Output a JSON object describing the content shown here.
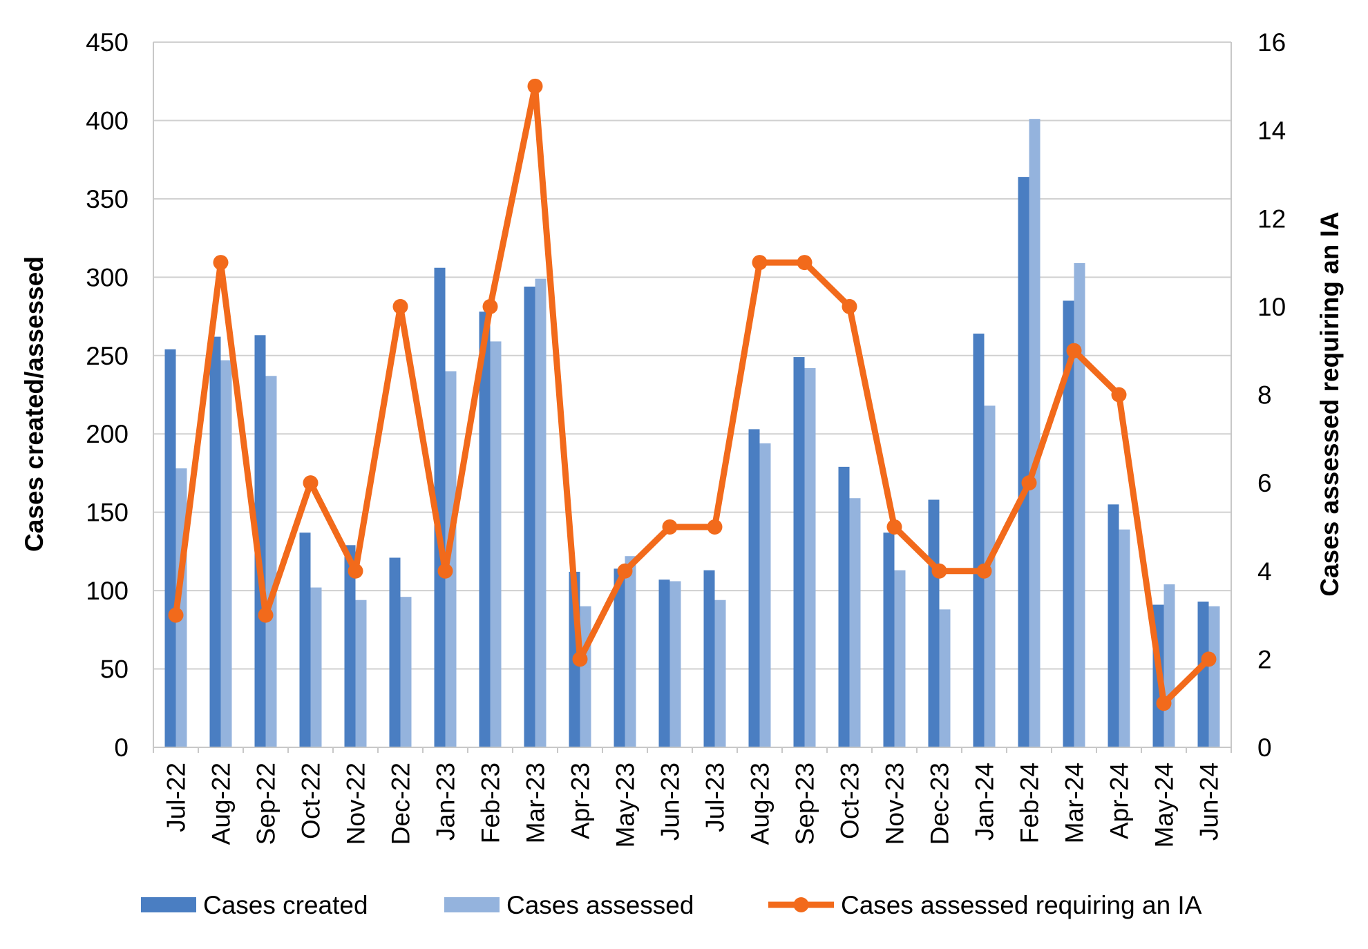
{
  "chart_data": {
    "type": "bar",
    "categories": [
      "Jul-22",
      "Aug-22",
      "Sep-22",
      "Oct-22",
      "Nov-22",
      "Dec-22",
      "Jan-23",
      "Feb-23",
      "Mar-23",
      "Apr-23",
      "May-23",
      "Jun-23",
      "Jul-23",
      "Aug-23",
      "Sep-23",
      "Oct-23",
      "Nov-23",
      "Dec-23",
      "Jan-24",
      "Feb-24",
      "Mar-24",
      "Apr-24",
      "May-24",
      "Jun-24"
    ],
    "series": [
      {
        "name": "Cases created",
        "type": "bar",
        "axis": "left",
        "color": "#4a7ec2",
        "values": [
          254,
          262,
          263,
          137,
          129,
          121,
          306,
          278,
          294,
          112,
          114,
          107,
          113,
          203,
          249,
          179,
          137,
          158,
          264,
          364,
          285,
          155,
          91,
          93
        ]
      },
      {
        "name": "Cases assessed",
        "type": "bar",
        "axis": "left",
        "color": "#94b3dd",
        "values": [
          178,
          247,
          237,
          102,
          94,
          96,
          240,
          259,
          299,
          90,
          122,
          106,
          94,
          194,
          242,
          159,
          113,
          88,
          218,
          401,
          309,
          139,
          104,
          90
        ]
      },
      {
        "name": "Cases assessed requiring an IA",
        "type": "line",
        "axis": "right",
        "color": "#f26a1b",
        "values": [
          3,
          11,
          3,
          6,
          4,
          10,
          4,
          10,
          15,
          2,
          4,
          5,
          5,
          11,
          11,
          10,
          5,
          4,
          4,
          6,
          9,
          8,
          1,
          2
        ]
      }
    ],
    "ylabel": "Cases created/assessed",
    "y2label": "Cases assessed requiring an IA",
    "ylim": [
      0,
      450
    ],
    "yticks": [
      "0",
      "50",
      "100",
      "150",
      "200",
      "250",
      "300",
      "350",
      "400",
      "450"
    ],
    "y2lim": [
      0,
      16
    ],
    "y2ticks": [
      "0",
      "2",
      "4",
      "6",
      "8",
      "10",
      "12",
      "14",
      "16"
    ],
    "grid": true,
    "legend_position": "bottom"
  }
}
